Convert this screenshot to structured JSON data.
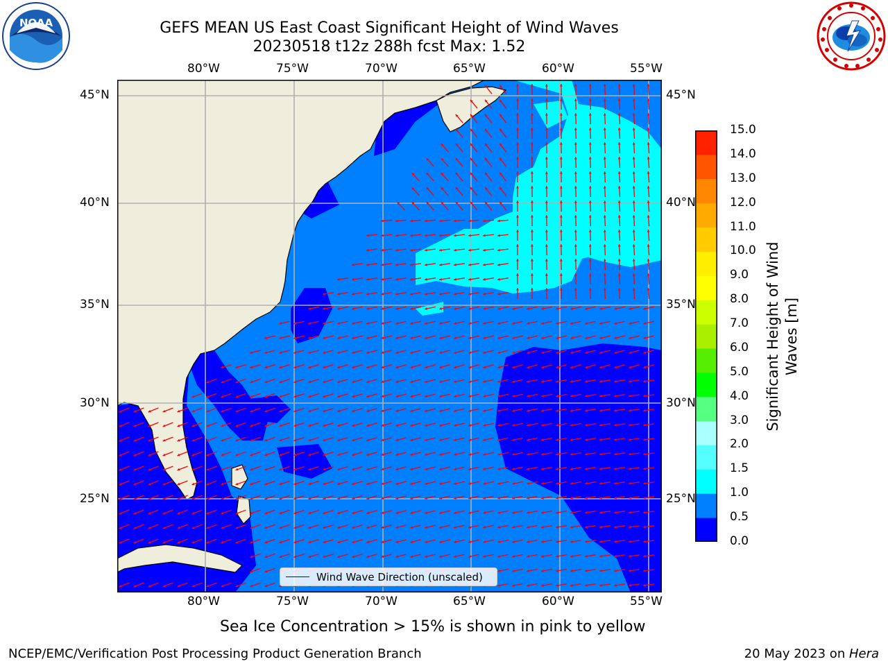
{
  "header": {
    "title_line1": "GEFS MEAN US East Coast Significant Height of Wind Waves",
    "title_line2": "20230518 t12z 288h fcst   Max: 1.52"
  },
  "logos": {
    "left": {
      "name": "NOAA",
      "text": "NOAA",
      "ring_text": "NATIONAL OCEANIC AND ATMOSPHERIC ADMINISTRATION · U.S. DEPARTMENT OF COMMERCE"
    },
    "right": {
      "name": "National Weather Service",
      "ring_text": "NATIONAL WEATHER SERVICE"
    }
  },
  "map": {
    "lon_labels": [
      "80°W",
      "75°W",
      "70°W",
      "65°W",
      "60°W",
      "55°W"
    ],
    "lat_labels": [
      "45°N",
      "40°N",
      "35°N",
      "30°N",
      "25°N"
    ],
    "colors": {
      "land": "#efeedc",
      "band_0_05": "#0000ff",
      "band_05_10": "#0080ff",
      "band_10_15": "#00ffff",
      "gridline": "#b0b0b0",
      "arrow": "#ff0000"
    },
    "legend_label": "Wind Wave Direction (unscaled)"
  },
  "colorbar": {
    "title": "Significant Height of Wind Waves [m]",
    "ticks": [
      "0.0",
      "0.5",
      "1.0",
      "1.5",
      "2.0",
      "3.0",
      "4.0",
      "5.0",
      "6.0",
      "7.0",
      "8.0",
      "9.0",
      "10.0",
      "11.0",
      "12.0",
      "13.0",
      "14.0",
      "15.0"
    ],
    "colors": [
      "#0000ff",
      "#0080ff",
      "#00ffff",
      "#55ffff",
      "#aaffff",
      "#55ff80",
      "#00ff00",
      "#55ee00",
      "#aaee00",
      "#ccff00",
      "#ffff00",
      "#ffee00",
      "#ffcc00",
      "#ffaa00",
      "#ff8800",
      "#ff5500",
      "#ff2200"
    ]
  },
  "footer": {
    "sea_ice_note": "Sea Ice Concentration > 15% is shown in pink to yellow",
    "branch": "NCEP/EMC/Verification Post Processing Product Generation Branch",
    "date_prefix": "20 May 2023 on ",
    "host": "Hera"
  }
}
